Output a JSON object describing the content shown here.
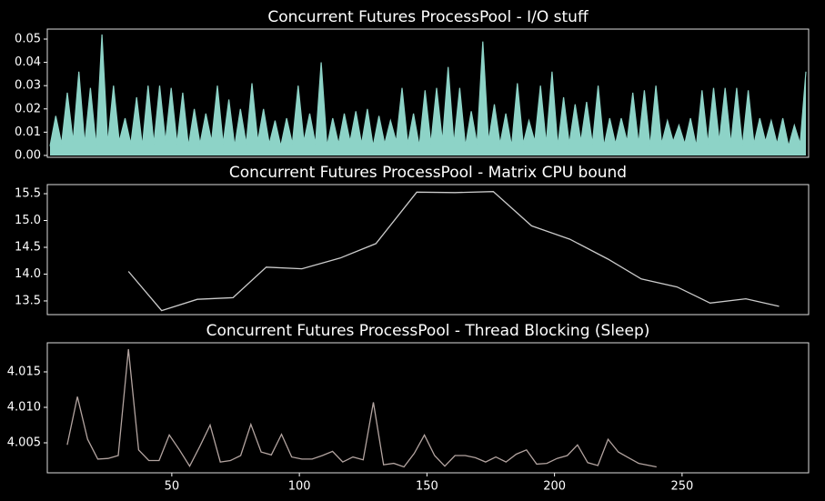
{
  "chart_data": [
    {
      "type": "area",
      "title": "Concurrent Futures ProcessPool - I/O stuff",
      "color": "#8dd3c7",
      "values": [
        0.004,
        0.017,
        0.005,
        0.027,
        0.006,
        0.036,
        0.005,
        0.029,
        0.004,
        0.052,
        0.005,
        0.03,
        0.006,
        0.016,
        0.005,
        0.025,
        0.004,
        0.03,
        0.005,
        0.03,
        0.006,
        0.029,
        0.005,
        0.027,
        0.004,
        0.02,
        0.005,
        0.018,
        0.006,
        0.03,
        0.005,
        0.024,
        0.004,
        0.02,
        0.005,
        0.031,
        0.006,
        0.02,
        0.005,
        0.015,
        0.004,
        0.016,
        0.005,
        0.03,
        0.006,
        0.018,
        0.005,
        0.04,
        0.004,
        0.016,
        0.005,
        0.018,
        0.006,
        0.019,
        0.005,
        0.02,
        0.004,
        0.017,
        0.005,
        0.015,
        0.006,
        0.029,
        0.005,
        0.018,
        0.004,
        0.028,
        0.005,
        0.029,
        0.006,
        0.038,
        0.005,
        0.029,
        0.004,
        0.019,
        0.005,
        0.049,
        0.006,
        0.022,
        0.005,
        0.018,
        0.004,
        0.031,
        0.005,
        0.015,
        0.006,
        0.03,
        0.005,
        0.036,
        0.004,
        0.025,
        0.005,
        0.022,
        0.006,
        0.023,
        0.005,
        0.03,
        0.004,
        0.016,
        0.005,
        0.016,
        0.006,
        0.027,
        0.005,
        0.028,
        0.004,
        0.03,
        0.005,
        0.015,
        0.006,
        0.013,
        0.005,
        0.016,
        0.004,
        0.028,
        0.005,
        0.029,
        0.006,
        0.029,
        0.005,
        0.029,
        0.004,
        0.028,
        0.005,
        0.016,
        0.006,
        0.015,
        0.005,
        0.016,
        0.004,
        0.013,
        0.005,
        0.036
      ],
      "ylim": [
        -0.0008,
        0.0543
      ],
      "yticks": [
        {
          "value": 0,
          "label": "0.00"
        },
        0.01,
        0.02,
        0.03,
        0.04,
        0.05
      ]
    },
    {
      "type": "line",
      "title": "Concurrent Futures ProcessPool - Matrix CPU bound",
      "color": "#cccccc",
      "x": [
        33,
        46,
        60,
        74,
        87,
        101,
        116,
        130,
        146,
        161,
        176,
        191,
        206,
        221,
        234,
        248,
        261,
        275,
        288
      ],
      "values": [
        14.05,
        13.32,
        13.53,
        13.56,
        14.13,
        14.1,
        14.3,
        14.57,
        15.53,
        15.52,
        15.54,
        14.9,
        14.65,
        14.28,
        13.91,
        13.76,
        13.46,
        13.54,
        13.4
      ],
      "xlim": [
        1.2,
        299.6
      ],
      "ylim": [
        13.245,
        15.67
      ],
      "yticks": [
        13.5,
        {
          "value": 14,
          "label": "14.0"
        },
        14.5,
        {
          "value": 15,
          "label": "15.0"
        },
        15.5
      ]
    },
    {
      "type": "line",
      "title": "Concurrent Futures ProcessPool - Thread Blocking (Sleep)",
      "color": "#b3a4a0",
      "x": [
        9,
        13,
        17,
        21,
        25,
        29,
        33,
        37,
        41,
        45,
        49,
        53,
        57,
        61,
        65,
        69,
        73,
        77,
        81,
        85,
        89,
        93,
        97,
        101,
        105,
        109,
        113,
        117,
        121,
        125,
        129,
        133,
        137,
        141,
        145,
        149,
        153,
        157,
        161,
        165,
        169,
        173,
        177,
        181,
        185,
        189,
        193,
        197,
        201,
        205,
        209,
        213,
        217,
        221,
        225,
        229,
        233,
        240
      ],
      "values": [
        4.0047,
        4.0115,
        4.0055,
        4.0027,
        4.0028,
        4.0032,
        4.0182,
        4.004,
        4.0025,
        4.0025,
        4.0061,
        4.004,
        4.0017,
        4.0045,
        4.0075,
        4.0023,
        4.0025,
        4.0032,
        4.0076,
        4.0037,
        4.0033,
        4.0062,
        4.003,
        4.0027,
        4.0027,
        4.0032,
        4.0038,
        4.0023,
        4.003,
        4.0026,
        4.0107,
        4.0019,
        4.0021,
        4.0016,
        4.0035,
        4.0061,
        4.0032,
        4.0017,
        4.0032,
        4.0032,
        4.0029,
        4.0023,
        4.003,
        4.0023,
        4.0034,
        4.004,
        4.002,
        4.0021,
        4.0028,
        4.0032,
        4.0047,
        4.0022,
        4.0018,
        4.0055,
        4.0037,
        4.0029,
        4.0021,
        4.0016
      ],
      "xlim": [
        1.2,
        299.6
      ],
      "xticks": [
        50,
        100,
        150,
        200,
        250
      ],
      "ylim": [
        4.00077,
        4.0191
      ],
      "yticks": [
        4.005,
        {
          "value": 4.01,
          "label": "4.010"
        },
        4.015
      ]
    }
  ]
}
